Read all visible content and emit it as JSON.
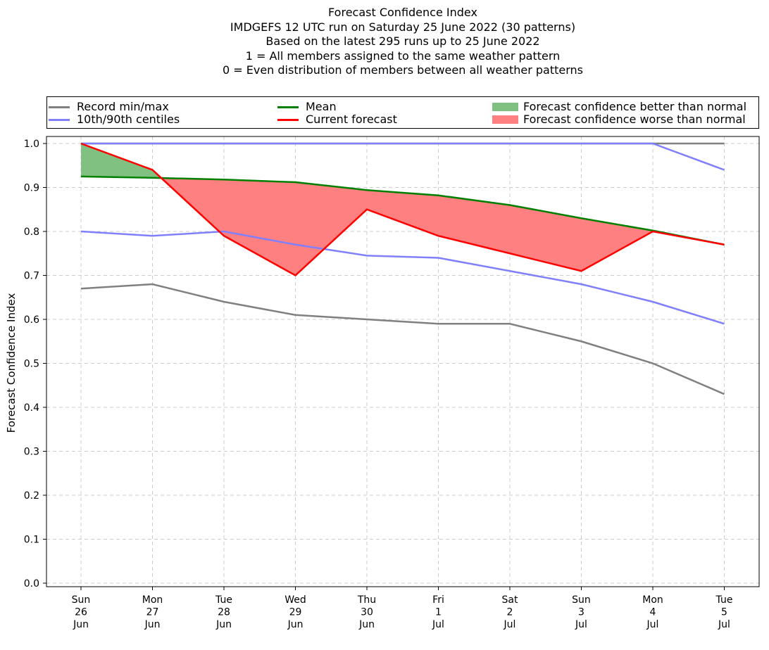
{
  "title_lines": [
    "Forecast Confidence Index",
    "IMDGEFS 12 UTC run on Saturday 25 June 2022 (30 patterns)",
    "Based on the latest 295 runs up to 25 June 2022",
    "1 = All members assigned to the same weather pattern",
    "0 = Even distribution of members between all weather patterns"
  ],
  "legend": {
    "record": "Record min/max",
    "centiles": "10th/90th centiles",
    "mean": "Mean",
    "current": "Current forecast",
    "better": "Forecast confidence better than normal",
    "worse": "Forecast confidence worse than normal"
  },
  "colors": {
    "record": "#808080",
    "centiles": "#8080ff",
    "mean": "#008000",
    "current": "#ff0000",
    "better": "#80c080",
    "worse": "#ff8080"
  },
  "chart_data": {
    "type": "line",
    "title": "Forecast Confidence Index",
    "ylabel": "Forecast Confidence Index",
    "xlabel": "",
    "ylim": [
      0,
      1
    ],
    "y_ticks": [
      "0.0",
      "0.1",
      "0.2",
      "0.3",
      "0.4",
      "0.5",
      "0.6",
      "0.7",
      "0.8",
      "0.9",
      "1.0"
    ],
    "grid": true,
    "legend_position": "top",
    "categories": [
      [
        "Sun",
        "26",
        "Jun"
      ],
      [
        "Mon",
        "27",
        "Jun"
      ],
      [
        "Tue",
        "28",
        "Jun"
      ],
      [
        "Wed",
        "29",
        "Jun"
      ],
      [
        "Thu",
        "30",
        "Jun"
      ],
      [
        "Fri",
        "1",
        "Jul"
      ],
      [
        "Sat",
        "2",
        "Jul"
      ],
      [
        "Sun",
        "3",
        "Jul"
      ],
      [
        "Mon",
        "4",
        "Jul"
      ],
      [
        "Tue",
        "5",
        "Jul"
      ]
    ],
    "series": [
      {
        "name": "Record min/max",
        "key": "record_min",
        "values": [
          0.67,
          0.68,
          0.64,
          0.61,
          0.6,
          0.59,
          0.59,
          0.55,
          0.5,
          0.43
        ]
      },
      {
        "name": "Record min/max",
        "key": "record_max",
        "values": [
          1.0,
          1.0,
          1.0,
          1.0,
          1.0,
          1.0,
          1.0,
          1.0,
          1.0,
          1.0
        ]
      },
      {
        "name": "10th/90th centiles",
        "key": "p10",
        "values": [
          0.8,
          0.79,
          0.8,
          0.77,
          0.745,
          0.74,
          0.71,
          0.68,
          0.64,
          0.59
        ]
      },
      {
        "name": "10th/90th centiles",
        "key": "p90",
        "values": [
          1.0,
          1.0,
          1.0,
          1.0,
          1.0,
          1.0,
          1.0,
          1.0,
          1.0,
          0.94
        ]
      },
      {
        "name": "Mean",
        "key": "mean",
        "values": [
          0.925,
          0.922,
          0.918,
          0.912,
          0.894,
          0.882,
          0.86,
          0.83,
          0.802,
          0.77
        ]
      },
      {
        "name": "Current forecast",
        "key": "current",
        "values": [
          1.0,
          0.94,
          0.79,
          0.7,
          0.85,
          0.79,
          0.75,
          0.71,
          0.8,
          0.77
        ]
      }
    ]
  }
}
